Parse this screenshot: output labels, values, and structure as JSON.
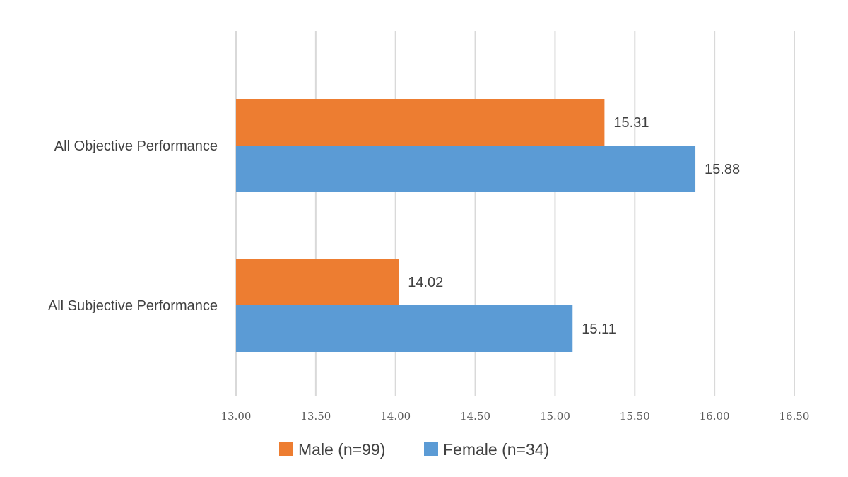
{
  "chart_data": {
    "type": "bar",
    "orientation": "horizontal",
    "categories": [
      "All Objective Performance",
      "All Subjective Performance"
    ],
    "series": [
      {
        "name": "Male (n=99)",
        "color": "#ed7d31",
        "values": [
          15.31,
          14.02
        ],
        "labels": [
          "15.31",
          "14.02"
        ]
      },
      {
        "name": "Female (n=34)",
        "color": "#5b9bd5",
        "values": [
          15.88,
          15.11
        ],
        "labels": [
          "15.88",
          "15.11"
        ]
      }
    ],
    "xlim": [
      13.0,
      16.5
    ],
    "xticks": [
      13.0,
      13.5,
      14.0,
      14.5,
      15.0,
      15.5,
      16.0,
      16.5
    ],
    "xtick_labels": [
      "13.00",
      "13.50",
      "14.00",
      "14.50",
      "15.00",
      "15.50",
      "16.00",
      "16.50"
    ],
    "title": "",
    "xlabel": "",
    "ylabel": "",
    "grid": "vertical",
    "legend_position": "bottom"
  }
}
